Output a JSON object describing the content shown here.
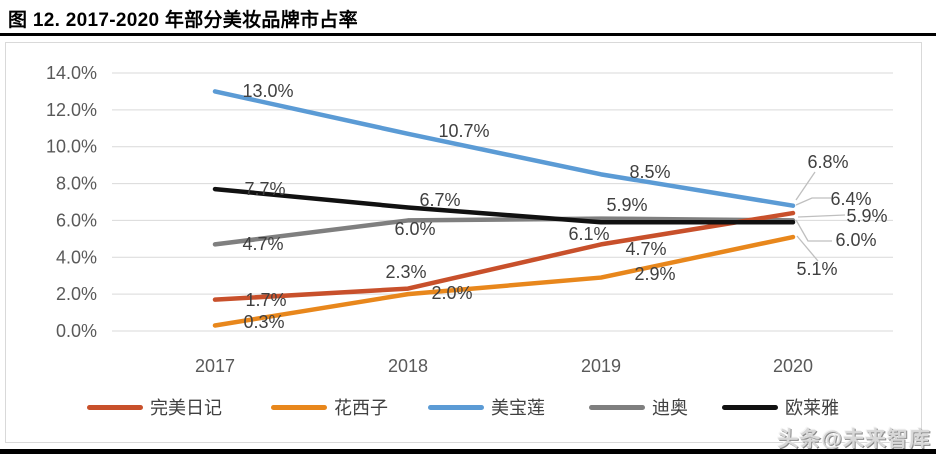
{
  "page": {
    "title": "图 12. 2017-2020 年部分美妆品牌市占率",
    "watermark": "头条@未来智库"
  },
  "chart_data": {
    "type": "line",
    "title": "2017-2020 年部分美妆品牌市占率",
    "categories": [
      "2017",
      "2018",
      "2019",
      "2020"
    ],
    "series": [
      {
        "name": "完美日记",
        "color": "#C8502B",
        "values": [
          1.7,
          2.3,
          4.7,
          6.4
        ],
        "point_labels": [
          "1.7%",
          "2.3%",
          "4.7%",
          "6.4%"
        ]
      },
      {
        "name": "花西子",
        "color": "#E8871C",
        "values": [
          0.3,
          2.0,
          2.9,
          5.1
        ],
        "point_labels": [
          "0.3%",
          "2.0%",
          "2.9%",
          "5.1%"
        ]
      },
      {
        "name": "美宝莲",
        "color": "#5B9BD5",
        "values": [
          13.0,
          10.7,
          8.5,
          6.8
        ],
        "point_labels": [
          "13.0%",
          "10.7%",
          "8.5%",
          "6.8%"
        ]
      },
      {
        "name": "迪奥",
        "color": "#7F7F7F",
        "values": [
          4.7,
          6.0,
          6.1,
          6.0
        ],
        "point_labels": [
          "4.7%",
          "6.0%",
          "6.1%",
          "6.0%"
        ]
      },
      {
        "name": "欧莱雅",
        "color": "#111111",
        "values": [
          7.7,
          6.7,
          5.9,
          5.9
        ],
        "point_labels": [
          "7.7%",
          "6.7%",
          "5.9%",
          "5.9%"
        ]
      }
    ],
    "xlabel": "",
    "ylabel": "",
    "ylim": [
      0,
      14
    ],
    "ytick_step": 2,
    "ytick_labels": [
      "0.0%",
      "2.0%",
      "4.0%",
      "6.0%",
      "8.0%",
      "10.0%",
      "12.0%",
      "14.0%"
    ],
    "grid": true,
    "legend_position": "bottom",
    "colors": {
      "gridline": "#D9D9D9",
      "axis_text": "#595959",
      "data_label_text": "#404040",
      "leader_line": "#BFBFBF"
    }
  }
}
